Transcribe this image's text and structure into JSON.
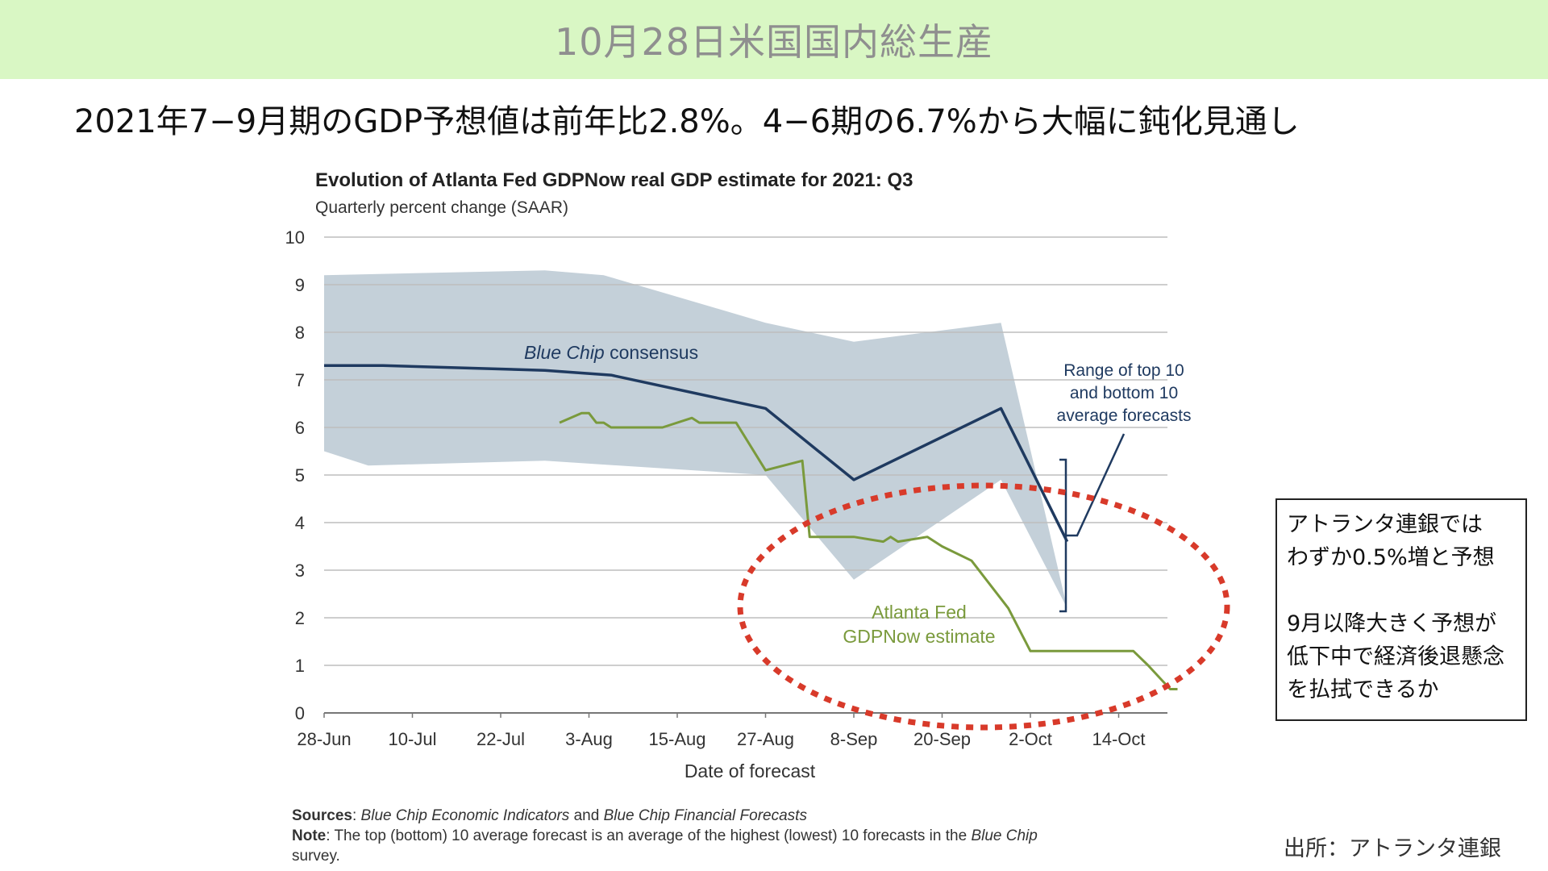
{
  "banner": {
    "title": "10月28日米国国内総生産"
  },
  "subtitle": "2021年7−9月期のGDP予想値は前年比2.8%。4−6期の6.7%から大幅に鈍化見通し",
  "chart_data": {
    "type": "line",
    "title": "Evolution of Atlanta Fed GDPNow real GDP estimate for 2021: Q3",
    "subtitle": "Quarterly percent change (SAAR)",
    "xlabel": "Date of forecast",
    "ylabel": "",
    "ylim": [
      0,
      10
    ],
    "yticks": [
      "0",
      "1",
      "2",
      "3",
      "4",
      "5",
      "6",
      "7",
      "8",
      "9",
      "10"
    ],
    "x_tick_labels": [
      "28-Jun",
      "10-Jul",
      "22-Jul",
      "3-Aug",
      "15-Aug",
      "27-Aug",
      "8-Sep",
      "20-Sep",
      "2-Oct",
      "14-Oct"
    ],
    "x_unit": "days from 28-Jun",
    "grid": true,
    "band": {
      "label": "Range of top 10 and bottom 10 average forecasts",
      "color": "#c4d0d9",
      "upper": [
        [
          0,
          9.2
        ],
        [
          30,
          9.3
        ],
        [
          38,
          9.2
        ],
        [
          60,
          8.2
        ],
        [
          72,
          7.8
        ],
        [
          92,
          8.2
        ],
        [
          101,
          2.2
        ]
      ],
      "lower": [
        [
          0,
          5.5
        ],
        [
          6,
          5.2
        ],
        [
          30,
          5.3
        ],
        [
          60,
          5.0
        ],
        [
          72,
          2.8
        ],
        [
          92,
          4.9
        ],
        [
          101,
          2.2
        ]
      ]
    },
    "series": [
      {
        "name": "Blue Chip consensus",
        "color": "#1f3a60",
        "points": [
          [
            0,
            7.3
          ],
          [
            8,
            7.3
          ],
          [
            30,
            7.2
          ],
          [
            39,
            7.1
          ],
          [
            60,
            6.4
          ],
          [
            72,
            4.9
          ],
          [
            92,
            6.4
          ],
          [
            101,
            3.6
          ]
        ]
      },
      {
        "name": "Atlanta Fed GDPNow estimate",
        "color": "#7a9a3c",
        "points": [
          [
            32,
            6.1
          ],
          [
            35,
            6.3
          ],
          [
            36,
            6.3
          ],
          [
            37,
            6.1
          ],
          [
            38,
            6.1
          ],
          [
            39,
            6.0
          ],
          [
            46,
            6.0
          ],
          [
            50,
            6.2
          ],
          [
            51,
            6.1
          ],
          [
            56,
            6.1
          ],
          [
            60,
            5.1
          ],
          [
            65,
            5.3
          ],
          [
            66,
            3.7
          ],
          [
            72,
            3.7
          ],
          [
            76,
            3.6
          ],
          [
            77,
            3.7
          ],
          [
            78,
            3.6
          ],
          [
            82,
            3.7
          ],
          [
            84,
            3.5
          ],
          [
            88,
            3.2
          ],
          [
            90,
            2.8
          ],
          [
            93,
            2.2
          ],
          [
            96,
            1.3
          ],
          [
            110,
            1.3
          ],
          [
            112,
            1.0
          ],
          [
            115,
            0.5
          ],
          [
            116,
            0.5
          ]
        ]
      }
    ],
    "annotations": {
      "blue_chip_label_italic": "Blue Chip",
      "blue_chip_label_rest": " consensus",
      "gdpnow_label_line1": "Atlanta Fed",
      "gdpnow_label_line2": "GDPNow estimate",
      "range_label_line1": "Range of top 10",
      "range_label_line2": "and bottom 10",
      "range_label_line3": "average forecasts"
    },
    "sources": {
      "sources_label": "Sources",
      "sources_text_1": ": ",
      "sources_italic_1": "Blue Chip Economic Indicators",
      "sources_text_2": " and ",
      "sources_italic_2": "Blue Chip Financial Forecasts",
      "note_label": "Note",
      "note_text_1": ": The top (bottom) 10 average forecast is an average of the highest (lowest) 10 forecasts in the ",
      "note_italic": "Blue Chip",
      "note_text_2": "survey."
    },
    "highlight_ellipse_color": "#d83a2a"
  },
  "callout": {
    "lines_1": [
      "アトランタ連銀では",
      "わずか0.5%増と予想"
    ],
    "lines_2": [
      "9月以降大きく予想が",
      "低下中で経済後退懸念",
      "を払拭できるか"
    ]
  },
  "source_credit": "出所：アトランタ連銀"
}
